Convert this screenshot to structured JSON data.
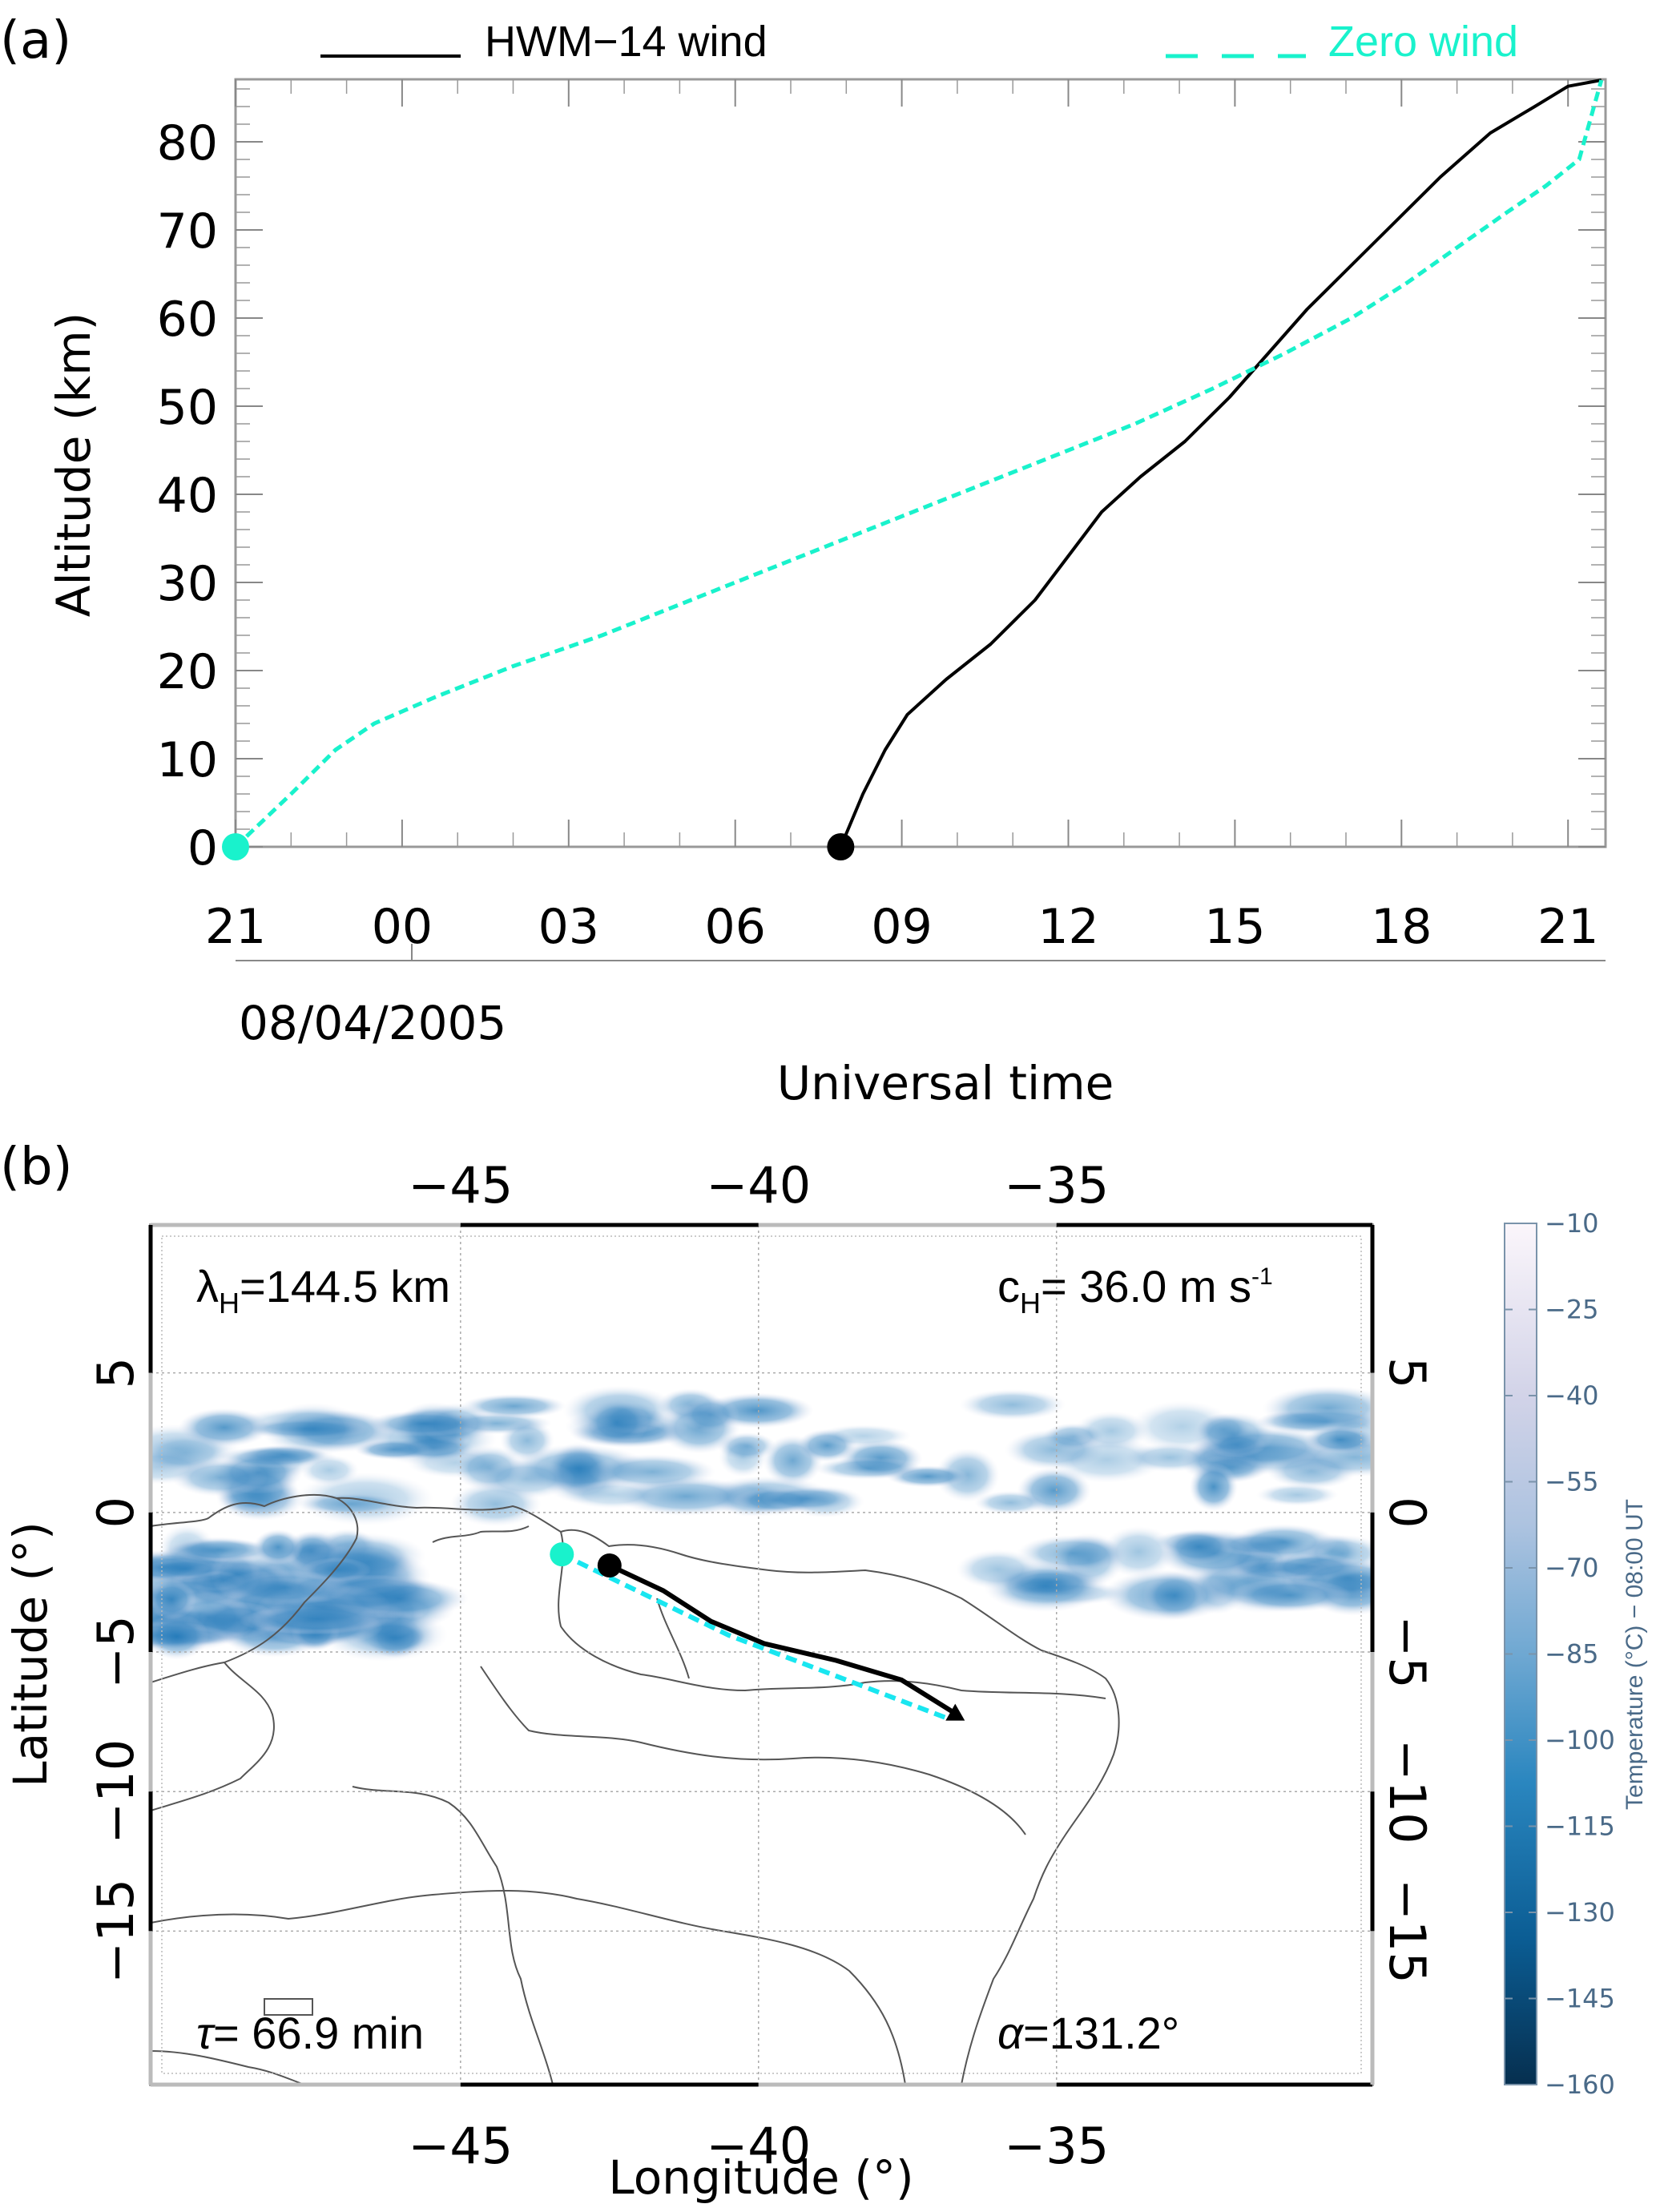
{
  "chart_data": [
    {
      "panel": "(a)",
      "type": "line",
      "xlabel": "Universal time",
      "ylabel": "Altitude (km)",
      "date_label": "08/04/2005",
      "x_unit": "hours since 21 UT (previous day)",
      "xlim": [
        0,
        24.7
      ],
      "ylim": [
        -2,
        87
      ],
      "x_ticks": [
        {
          "value": 0,
          "label": "21"
        },
        {
          "value": 3,
          "label": "00"
        },
        {
          "value": 6,
          "label": "03"
        },
        {
          "value": 9,
          "label": "06"
        },
        {
          "value": 12,
          "label": "09"
        },
        {
          "value": 15,
          "label": "12"
        },
        {
          "value": 18,
          "label": "15"
        },
        {
          "value": 21,
          "label": "18"
        },
        {
          "value": 24,
          "label": "21"
        }
      ],
      "y_ticks": [
        0,
        10,
        20,
        30,
        40,
        50,
        60,
        70,
        80
      ],
      "legend": [
        {
          "label": "HWM−14 wind",
          "style": "solid",
          "color": "#000000",
          "position": "top-left"
        },
        {
          "label": "Zero wind",
          "style": "dashed",
          "color": "#19f2cc",
          "position": "top-right"
        }
      ],
      "series": [
        {
          "name": "HWM-14 wind",
          "color": "#000000",
          "style": "solid",
          "start_marker": "filled-circle",
          "points": [
            [
              10.9,
              0
            ],
            [
              11.3,
              6
            ],
            [
              11.7,
              11
            ],
            [
              12.1,
              15
            ],
            [
              12.8,
              19
            ],
            [
              13.6,
              23
            ],
            [
              14.4,
              28
            ],
            [
              15.0,
              33
            ],
            [
              15.6,
              38
            ],
            [
              16.3,
              42
            ],
            [
              17.1,
              46
            ],
            [
              17.9,
              51
            ],
            [
              18.6,
              56
            ],
            [
              19.3,
              61
            ],
            [
              20.1,
              66
            ],
            [
              20.9,
              71
            ],
            [
              21.7,
              76
            ],
            [
              22.6,
              81
            ],
            [
              23.4,
              84
            ],
            [
              24.0,
              86.3
            ],
            [
              24.6,
              87
            ]
          ]
        },
        {
          "name": "Zero wind",
          "color": "#19f2cc",
          "style": "dashed",
          "start_marker": "filled-circle",
          "points": [
            [
              0,
              0
            ],
            [
              1.0,
              6
            ],
            [
              1.8,
              11
            ],
            [
              2.5,
              14
            ],
            [
              3.6,
              17
            ],
            [
              5.0,
              20.5
            ],
            [
              6.6,
              24
            ],
            [
              8.2,
              28
            ],
            [
              9.8,
              32
            ],
            [
              11.4,
              36
            ],
            [
              13.0,
              40
            ],
            [
              14.6,
              44
            ],
            [
              16.2,
              48
            ],
            [
              17.6,
              52
            ],
            [
              18.9,
              56
            ],
            [
              20.1,
              60
            ],
            [
              21.1,
              64
            ],
            [
              22.0,
              68
            ],
            [
              22.9,
              72
            ],
            [
              23.6,
              75
            ],
            [
              24.2,
              78
            ],
            [
              24.6,
              87
            ]
          ]
        }
      ]
    },
    {
      "panel": "(b)",
      "type": "heatmap",
      "xlabel": "Longitude (°)",
      "ylabel": "Latitude (°)",
      "xlim": [
        -50.2,
        -29.7
      ],
      "ylim": [
        -20.5,
        10.3
      ],
      "x_ticks": [
        -45,
        -40,
        -35
      ],
      "x_tick_labels": [
        "−45",
        "−40",
        "−35"
      ],
      "y_ticks": [
        5,
        0,
        -5,
        -10,
        -15
      ],
      "y_tick_labels": [
        "5",
        "0",
        "−5",
        "−10",
        "−15"
      ],
      "grid": true,
      "annotations": {
        "wavelength": {
          "symbol": "λ",
          "sub": "H",
          "text": "=144.5  km"
        },
        "phase_speed": {
          "symbol": "c",
          "sub": "H",
          "text": "=  36.0 m s",
          "sup": "-1"
        },
        "period": {
          "symbol": "τ",
          "text": "=  66.9  min"
        },
        "direction": {
          "symbol": "α",
          "text": "=131.2°"
        }
      },
      "colorbar": {
        "label": "Temperature (°C) − 08:00 UT",
        "ticks": [
          -10,
          -25,
          -40,
          -55,
          -70,
          -85,
          -100,
          -115,
          -130,
          -145,
          -160
        ],
        "tick_labels": [
          "−10",
          "−25",
          "−40",
          "−55",
          "−70",
          "−85",
          "−100",
          "−115",
          "−130",
          "−145",
          "−160"
        ],
        "range": [
          -160,
          -10
        ],
        "colors": [
          "#062f4f",
          "#0b5d94",
          "#2a86bf",
          "#6fa8d2",
          "#adc3e0",
          "#d2d3e8",
          "#fbf6fb"
        ]
      },
      "trajectories": [
        {
          "name": "HWM-14 wind",
          "color": "#000000",
          "style": "solid",
          "points": [
            [
              -42.5,
              -1.9
            ],
            [
              -41.6,
              -2.8
            ],
            [
              -40.8,
              -3.9
            ],
            [
              -39.9,
              -4.7
            ],
            [
              -38.7,
              -5.3
            ],
            [
              -37.6,
              -6.0
            ],
            [
              -36.7,
              -7.2
            ]
          ],
          "start_marker": "filled-circle",
          "end_marker": "triangle"
        },
        {
          "name": "Zero wind",
          "color": "#19e6f0",
          "style": "dashed",
          "points": [
            [
              -43.3,
              -1.5
            ],
            [
              -40.5,
              -4.4
            ],
            [
              -36.8,
              -7.4
            ]
          ],
          "start_marker": "filled-circle"
        }
      ],
      "cloud_regions": [
        {
          "lon": [
            -50.2,
            -29.8
          ],
          "lat": [
            0.3,
            4.0
          ],
          "intensity": "strong"
        },
        {
          "lon": [
            -50.2,
            -46.0
          ],
          "lat": [
            -4.5,
            -1.2
          ],
          "intensity": "strong"
        },
        {
          "lon": [
            -36.0,
            -29.8
          ],
          "lat": [
            -3.0,
            -1.0
          ],
          "intensity": "moderate"
        }
      ]
    }
  ],
  "panel_labels": {
    "a": "(a)",
    "b": "(b)"
  }
}
